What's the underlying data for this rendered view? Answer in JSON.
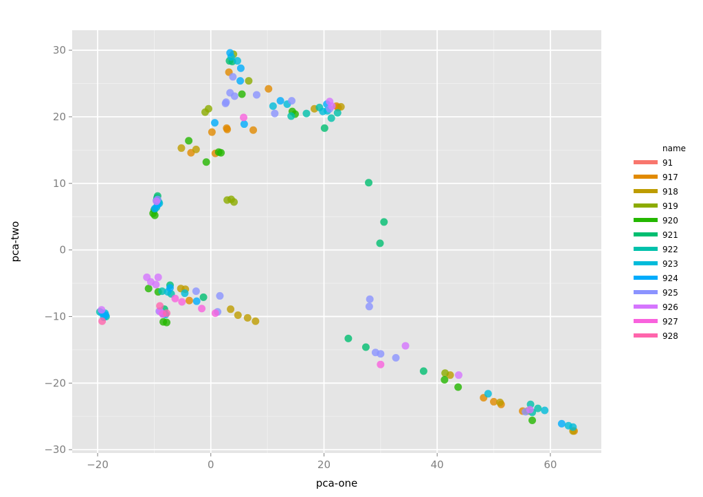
{
  "chart_data": {
    "type": "scatter",
    "title": "",
    "xlabel": "pca-one",
    "ylabel": "pca-two",
    "xlim": [
      -24.5,
      69
    ],
    "ylim": [
      -30.5,
      33
    ],
    "x_ticks": [
      -20,
      0,
      20,
      40,
      60
    ],
    "y_ticks": [
      -30,
      -20,
      -10,
      0,
      10,
      20,
      30
    ],
    "x_tick_labels": [
      "−20",
      "0",
      "20",
      "40",
      "60"
    ],
    "y_tick_labels": [
      "−30",
      "−20",
      "−10",
      "0",
      "10",
      "20",
      "30"
    ],
    "grid": true,
    "legend": {
      "title": "name",
      "position": "right",
      "entries": [
        "91",
        "917",
        "918",
        "919",
        "920",
        "921",
        "922",
        "923",
        "924",
        "925",
        "926",
        "927",
        "928"
      ]
    },
    "colors": {
      "91": "#f8766d",
      "917": "#e18a00",
      "918": "#be9c00",
      "919": "#8cab00",
      "920": "#24b700",
      "921": "#00be70",
      "922": "#00c1ab",
      "923": "#00bbda",
      "924": "#00acfc",
      "925": "#8b93ff",
      "926": "#d575fe",
      "927": "#f962dd",
      "928": "#ff65ac"
    },
    "series": [
      {
        "name": "917",
        "points": [
          [
            3.2,
            26.7
          ],
          [
            10.2,
            24.2
          ],
          [
            0.2,
            17.7
          ],
          [
            2.8,
            18.3
          ],
          [
            2.9,
            18.1
          ],
          [
            7.5,
            18.0
          ],
          [
            -3.5,
            14.6
          ],
          [
            0.8,
            14.5
          ],
          [
            22.5,
            21.4
          ],
          [
            22.2,
            21.6
          ],
          [
            -3.8,
            -7.6
          ],
          [
            48.2,
            -22.2
          ],
          [
            50.0,
            -22.8
          ],
          [
            51.3,
            -23.2
          ],
          [
            55.1,
            -24.2
          ],
          [
            64.2,
            -27.2
          ]
        ]
      },
      {
        "name": "918",
        "points": [
          [
            -5.2,
            15.3
          ],
          [
            -2.6,
            15.1
          ],
          [
            18.3,
            21.2
          ],
          [
            23.0,
            21.5
          ],
          [
            4.8,
            -9.8
          ],
          [
            6.5,
            -10.2
          ],
          [
            7.9,
            -10.7
          ],
          [
            3.5,
            -8.9
          ],
          [
            -5.3,
            -5.8
          ],
          [
            -4.5,
            -5.9
          ],
          [
            42.3,
            -18.8
          ],
          [
            51.1,
            -22.9
          ],
          [
            56.0,
            -24.2
          ],
          [
            64.0,
            -27.2
          ]
        ]
      },
      {
        "name": "919",
        "points": [
          [
            4.0,
            29.4
          ],
          [
            -1.0,
            20.7
          ],
          [
            -0.4,
            21.2
          ],
          [
            6.7,
            25.4
          ],
          [
            2.9,
            7.5
          ],
          [
            3.6,
            7.6
          ],
          [
            4.1,
            7.2
          ],
          [
            41.4,
            -18.5
          ]
        ]
      },
      {
        "name": "920",
        "points": [
          [
            -3.9,
            16.4
          ],
          [
            1.4,
            14.7
          ],
          [
            1.8,
            14.6
          ],
          [
            -0.8,
            13.2
          ],
          [
            14.9,
            20.4
          ],
          [
            14.4,
            20.8
          ],
          [
            5.5,
            23.4
          ],
          [
            -10.2,
            5.5
          ],
          [
            -9.9,
            5.2
          ],
          [
            -10.0,
            6.0
          ],
          [
            -11.0,
            -5.8
          ],
          [
            -9.3,
            -6.3
          ],
          [
            -8.4,
            -10.8
          ],
          [
            -7.8,
            -10.9
          ],
          [
            41.3,
            -19.5
          ],
          [
            43.7,
            -20.6
          ],
          [
            56.8,
            -25.6
          ]
        ]
      },
      {
        "name": "921",
        "points": [
          [
            3.3,
            28.4
          ],
          [
            3.8,
            28.3
          ],
          [
            20.1,
            18.3
          ],
          [
            27.9,
            10.1
          ],
          [
            30.6,
            4.2
          ],
          [
            29.9,
            1.0
          ],
          [
            -9.5,
            7.8
          ],
          [
            -9.4,
            8.1
          ],
          [
            -1.3,
            -7.1
          ],
          [
            -7.2,
            -5.3
          ],
          [
            -8.2,
            -8.9
          ],
          [
            24.3,
            -13.3
          ],
          [
            27.4,
            -14.6
          ],
          [
            37.6,
            -18.2
          ]
        ]
      },
      {
        "name": "922",
        "points": [
          [
            14.2,
            20.1
          ],
          [
            16.9,
            20.5
          ],
          [
            19.2,
            21.4
          ],
          [
            21.3,
            19.8
          ],
          [
            22.4,
            20.6
          ],
          [
            -9.2,
            7.2
          ],
          [
            -9.6,
            6.4
          ],
          [
            -7.0,
            -6.6
          ],
          [
            -8.6,
            -6.2
          ],
          [
            -19.6,
            -9.3
          ],
          [
            -18.5,
            -10.0
          ],
          [
            56.5,
            -23.2
          ],
          [
            57.8,
            -23.8
          ],
          [
            56.8,
            -24.4
          ]
        ]
      },
      {
        "name": "923",
        "points": [
          [
            3.6,
            29.0
          ],
          [
            4.7,
            28.4
          ],
          [
            11.0,
            21.6
          ],
          [
            13.5,
            21.9
          ],
          [
            19.8,
            20.8
          ],
          [
            20.6,
            20.9
          ],
          [
            -9.1,
            7.0
          ],
          [
            -9.6,
            7.4
          ],
          [
            -4.6,
            -6.5
          ],
          [
            -7.6,
            -6.3
          ],
          [
            -8.0,
            -9.7
          ],
          [
            -18.7,
            -9.5
          ],
          [
            -18.9,
            -10.1
          ],
          [
            49.0,
            -21.6
          ],
          [
            59.0,
            -24.1
          ],
          [
            63.2,
            -26.4
          ],
          [
            64.0,
            -26.6
          ]
        ]
      },
      {
        "name": "924",
        "points": [
          [
            3.4,
            29.6
          ],
          [
            5.3,
            27.3
          ],
          [
            5.2,
            25.4
          ],
          [
            0.7,
            19.1
          ],
          [
            5.9,
            18.9
          ],
          [
            12.3,
            22.4
          ],
          [
            20.5,
            21.9
          ],
          [
            -9.4,
            6.8
          ],
          [
            -9.9,
            6.2
          ],
          [
            -2.5,
            -7.7
          ],
          [
            -7.2,
            -5.7
          ],
          [
            -8.4,
            -9.6
          ],
          [
            -19.2,
            -9.5
          ],
          [
            -18.6,
            -9.8
          ],
          [
            62.0,
            -26.1
          ]
        ]
      },
      {
        "name": "925",
        "points": [
          [
            3.9,
            26.0
          ],
          [
            4.2,
            23.1
          ],
          [
            2.6,
            22.0
          ],
          [
            3.4,
            23.6
          ],
          [
            8.1,
            23.3
          ],
          [
            11.3,
            20.5
          ],
          [
            14.3,
            22.4
          ],
          [
            2.7,
            22.2
          ],
          [
            21.0,
            21.2
          ],
          [
            -9.4,
            7.6
          ],
          [
            -2.6,
            -6.2
          ],
          [
            1.6,
            -6.9
          ],
          [
            1.2,
            -9.3
          ],
          [
            -8.5,
            -9.6
          ],
          [
            -9.1,
            -9.2
          ],
          [
            28.1,
            -7.4
          ],
          [
            28.0,
            -8.5
          ],
          [
            29.1,
            -15.4
          ],
          [
            30.0,
            -15.6
          ],
          [
            32.7,
            -16.2
          ],
          [
            55.6,
            -24.3
          ]
        ]
      },
      {
        "name": "926",
        "points": [
          [
            21.0,
            22.3
          ],
          [
            21.4,
            21.6
          ],
          [
            -9.6,
            7.3
          ],
          [
            -11.3,
            -4.1
          ],
          [
            -9.3,
            -4.1
          ],
          [
            -10.6,
            -4.8
          ],
          [
            -9.7,
            -5.2
          ],
          [
            -9.0,
            -9.2
          ],
          [
            -19.3,
            -9.0
          ],
          [
            34.4,
            -14.4
          ],
          [
            43.8,
            -18.8
          ],
          [
            56.4,
            -24.0
          ]
        ]
      },
      {
        "name": "927",
        "points": [
          [
            -6.3,
            -7.3
          ],
          [
            -5.1,
            -7.8
          ],
          [
            -1.6,
            -8.8
          ],
          [
            5.8,
            19.9
          ],
          [
            0.8,
            -9.5
          ],
          [
            30.0,
            -17.2
          ],
          [
            -8.5,
            -9.6
          ]
        ]
      },
      {
        "name": "928",
        "points": [
          [
            -9.0,
            -8.4
          ],
          [
            -19.2,
            -10.7
          ],
          [
            -7.8,
            -9.5
          ]
        ]
      },
      {
        "name": "91",
        "points": []
      }
    ]
  }
}
